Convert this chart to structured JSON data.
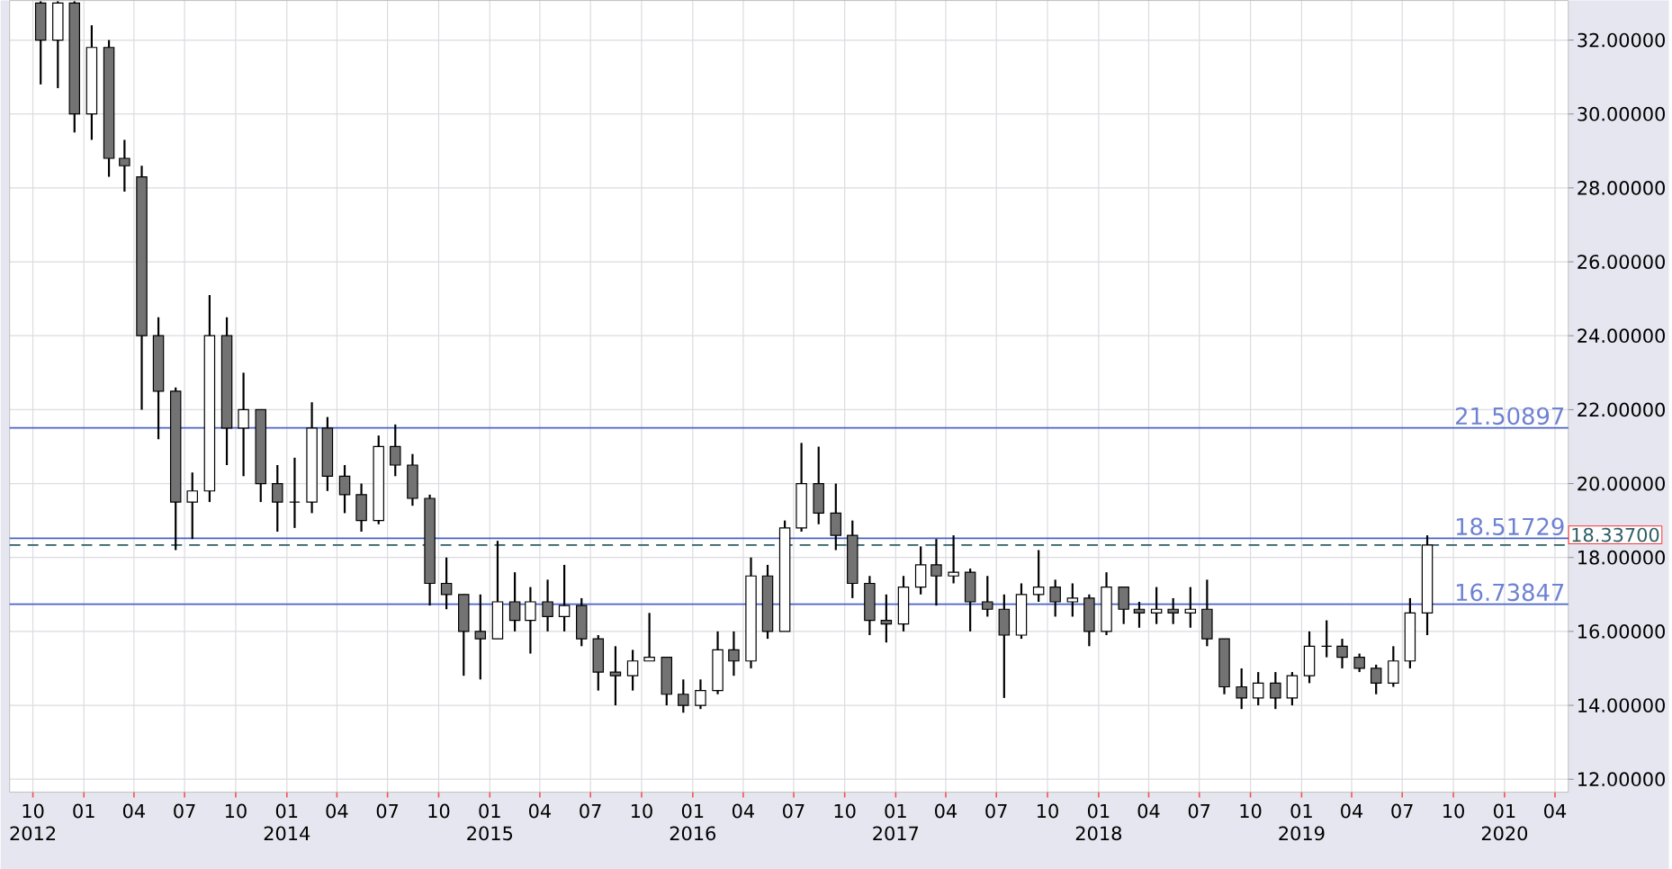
{
  "chart_data": {
    "type": "candlestick",
    "color": "#000000",
    "grid": true,
    "x": [
      "2012-10-15",
      "2012-11-15",
      "2012-12-15",
      "2013-01-15",
      "2013-02-15",
      "2013-03-15",
      "2013-04-15",
      "2013-05-15",
      "2013-06-15",
      "2013-07-15",
      "2013-08-15",
      "2013-09-15",
      "2013-10-15",
      "2013-11-15",
      "2013-12-15",
      "2014-01-15",
      "2014-02-15",
      "2014-03-15",
      "2014-04-15",
      "2014-05-15",
      "2014-06-15",
      "2014-07-15",
      "2014-08-15",
      "2014-09-15",
      "2014-10-15",
      "2014-11-15",
      "2014-12-15",
      "2015-01-15",
      "2015-02-15",
      "2015-03-15",
      "2015-04-15",
      "2015-05-15",
      "2015-06-15",
      "2015-07-15",
      "2015-08-15",
      "2015-09-15",
      "2015-10-15",
      "2015-11-15",
      "2015-12-15",
      "2016-01-15",
      "2016-02-15",
      "2016-03-15",
      "2016-04-15",
      "2016-05-15",
      "2016-06-15",
      "2016-07-15",
      "2016-08-15",
      "2016-09-15",
      "2016-10-15",
      "2016-11-15",
      "2016-12-15",
      "2017-01-15",
      "2017-02-15",
      "2017-03-15",
      "2017-04-15",
      "2017-05-15",
      "2017-06-15",
      "2017-07-15",
      "2017-08-15",
      "2017-09-15",
      "2017-10-15",
      "2017-11-15",
      "2017-12-15",
      "2018-01-15",
      "2018-02-15",
      "2018-03-15",
      "2018-04-15",
      "2018-05-15",
      "2018-06-15",
      "2018-07-15",
      "2018-08-15",
      "2018-09-15",
      "2018-10-15",
      "2018-11-15",
      "2018-12-15",
      "2019-01-15",
      "2019-02-15",
      "2019-03-15",
      "2019-04-15",
      "2019-05-15",
      "2019-06-15",
      "2019-07-15",
      "2019-08-15"
    ],
    "ohlc": [
      [
        33.0,
        33.05,
        30.8,
        32.0
      ],
      [
        32.0,
        33.05,
        30.7,
        33.0
      ],
      [
        33.0,
        33.05,
        29.5,
        30.0
      ],
      [
        30.0,
        32.4,
        29.3,
        31.8
      ],
      [
        31.8,
        32.0,
        28.3,
        28.8
      ],
      [
        28.8,
        29.3,
        27.9,
        28.6
      ],
      [
        28.3,
        28.6,
        22.0,
        24.0
      ],
      [
        24.0,
        24.5,
        21.2,
        22.5
      ],
      [
        22.5,
        22.6,
        18.2,
        19.5
      ],
      [
        19.5,
        20.3,
        18.5,
        19.8
      ],
      [
        19.8,
        25.1,
        19.5,
        24.0
      ],
      [
        24.0,
        24.5,
        20.5,
        21.5
      ],
      [
        21.5,
        23.0,
        20.2,
        22.0
      ],
      [
        22.0,
        22.0,
        19.5,
        20.0
      ],
      [
        20.0,
        20.5,
        18.7,
        19.5
      ],
      [
        19.5,
        20.7,
        18.8,
        19.5
      ],
      [
        19.5,
        22.2,
        19.2,
        21.5
      ],
      [
        21.5,
        21.8,
        19.8,
        20.2
      ],
      [
        20.2,
        20.5,
        19.2,
        19.7
      ],
      [
        19.7,
        20.0,
        18.7,
        19.0
      ],
      [
        19.0,
        21.3,
        18.9,
        21.0
      ],
      [
        21.0,
        21.6,
        20.2,
        20.5
      ],
      [
        20.5,
        20.8,
        19.4,
        19.6
      ],
      [
        19.6,
        19.7,
        16.7,
        17.3
      ],
      [
        17.3,
        18.0,
        16.6,
        17.0
      ],
      [
        17.0,
        17.0,
        14.8,
        16.0
      ],
      [
        16.0,
        17.0,
        14.7,
        15.8
      ],
      [
        15.8,
        18.45,
        15.8,
        16.8
      ],
      [
        16.8,
        17.6,
        16.0,
        16.3
      ],
      [
        16.3,
        17.2,
        15.4,
        16.8
      ],
      [
        16.8,
        17.4,
        16.0,
        16.4
      ],
      [
        16.4,
        17.8,
        16.0,
        16.7
      ],
      [
        16.7,
        16.9,
        15.6,
        15.8
      ],
      [
        15.8,
        15.9,
        14.4,
        14.9
      ],
      [
        14.9,
        15.6,
        14.0,
        14.8
      ],
      [
        14.8,
        15.5,
        14.4,
        15.2
      ],
      [
        15.2,
        16.5,
        15.2,
        15.3
      ],
      [
        15.3,
        15.3,
        14.0,
        14.3
      ],
      [
        14.3,
        14.7,
        13.8,
        14.0
      ],
      [
        14.0,
        14.7,
        13.9,
        14.4
      ],
      [
        14.4,
        16.0,
        14.3,
        15.5
      ],
      [
        15.5,
        16.0,
        14.8,
        15.2
      ],
      [
        15.2,
        18.0,
        15.0,
        17.5
      ],
      [
        17.5,
        17.8,
        15.8,
        16.0
      ],
      [
        16.0,
        19.0,
        16.0,
        18.8
      ],
      [
        18.8,
        21.1,
        18.7,
        20.0
      ],
      [
        20.0,
        21.0,
        18.9,
        19.2
      ],
      [
        19.2,
        20.0,
        18.2,
        18.6
      ],
      [
        18.6,
        19.0,
        16.9,
        17.3
      ],
      [
        17.3,
        17.5,
        15.9,
        16.3
      ],
      [
        16.3,
        17.0,
        15.7,
        16.2
      ],
      [
        16.2,
        17.5,
        16.0,
        17.2
      ],
      [
        17.2,
        18.3,
        17.0,
        17.8
      ],
      [
        17.8,
        18.5,
        16.7,
        17.5
      ],
      [
        17.5,
        18.6,
        17.3,
        17.6
      ],
      [
        17.6,
        17.7,
        16.0,
        16.8
      ],
      [
        16.8,
        17.5,
        16.4,
        16.6
      ],
      [
        16.6,
        17.0,
        14.2,
        15.9
      ],
      [
        15.9,
        17.3,
        15.8,
        17.0
      ],
      [
        17.0,
        18.2,
        16.8,
        17.2
      ],
      [
        17.2,
        17.4,
        16.4,
        16.8
      ],
      [
        16.8,
        17.3,
        16.4,
        16.9
      ],
      [
        16.9,
        17.0,
        15.6,
        16.0
      ],
      [
        16.0,
        17.6,
        15.9,
        17.2
      ],
      [
        17.2,
        17.2,
        16.2,
        16.6
      ],
      [
        16.6,
        16.8,
        16.1,
        16.5
      ],
      [
        16.5,
        17.2,
        16.2,
        16.6
      ],
      [
        16.6,
        16.9,
        16.2,
        16.5
      ],
      [
        16.5,
        17.2,
        16.1,
        16.6
      ],
      [
        16.6,
        17.4,
        15.6,
        15.8
      ],
      [
        15.8,
        15.8,
        14.3,
        14.5
      ],
      [
        14.5,
        15.0,
        13.9,
        14.2
      ],
      [
        14.2,
        14.9,
        14.0,
        14.6
      ],
      [
        14.6,
        14.9,
        13.9,
        14.2
      ],
      [
        14.2,
        14.9,
        14.0,
        14.8
      ],
      [
        14.8,
        16.0,
        14.6,
        15.6
      ],
      [
        15.6,
        16.3,
        15.3,
        15.6
      ],
      [
        15.6,
        15.8,
        15.0,
        15.3
      ],
      [
        15.3,
        15.4,
        14.9,
        15.0
      ],
      [
        15.0,
        15.1,
        14.3,
        14.6
      ],
      [
        14.6,
        15.6,
        14.5,
        15.2
      ],
      [
        15.2,
        16.9,
        15.0,
        16.5
      ],
      [
        16.5,
        18.6,
        15.9,
        18.337
      ]
    ],
    "xlim": [
      "2012-08-20",
      "2020-04-25"
    ],
    "xticks": [
      {
        "value": "2012-10",
        "label": "10 2012"
      },
      {
        "value": "2013-01",
        "label": "01"
      },
      {
        "value": "2013-04",
        "label": "04"
      },
      {
        "value": "2013-07",
        "label": "07"
      },
      {
        "value": "2013-10",
        "label": "10"
      },
      {
        "value": "2014-01",
        "label": "01 2014"
      },
      {
        "value": "2014-04",
        "label": "04"
      },
      {
        "value": "2014-07",
        "label": "07"
      },
      {
        "value": "2014-10",
        "label": "10"
      },
      {
        "value": "2015-01",
        "label": "01 2015"
      },
      {
        "value": "2015-04",
        "label": "04"
      },
      {
        "value": "2015-07",
        "label": "07"
      },
      {
        "value": "2015-10",
        "label": "10"
      },
      {
        "value": "2016-01",
        "label": "01 2016"
      },
      {
        "value": "2016-04",
        "label": "04"
      },
      {
        "value": "2016-07",
        "label": "07"
      },
      {
        "value": "2016-10",
        "label": "10"
      },
      {
        "value": "2017-01",
        "label": "01 2017"
      },
      {
        "value": "2017-04",
        "label": "04"
      },
      {
        "value": "2017-07",
        "label": "07"
      },
      {
        "value": "2017-10",
        "label": "10"
      },
      {
        "value": "2018-01",
        "label": "01 2018"
      },
      {
        "value": "2018-04",
        "label": "04"
      },
      {
        "value": "2018-07",
        "label": "07"
      },
      {
        "value": "2018-10",
        "label": "10"
      },
      {
        "value": "2019-01",
        "label": "01 2019"
      },
      {
        "value": "2019-04",
        "label": "04"
      },
      {
        "value": "2019-07",
        "label": "07"
      },
      {
        "value": "2019-10",
        "label": "10"
      },
      {
        "value": "2020-01",
        "label": "01 2020"
      },
      {
        "value": "2020-04",
        "label": "04"
      }
    ],
    "ylim": [
      11.65,
      33.07
    ],
    "yticks": [
      {
        "value": 12,
        "label": "12.00000"
      },
      {
        "value": 14,
        "label": "14.00000"
      },
      {
        "value": 16,
        "label": "16.00000"
      },
      {
        "value": 18,
        "label": "18.00000"
      },
      {
        "value": 20,
        "label": "20.00000"
      },
      {
        "value": 22,
        "label": "22.00000"
      },
      {
        "value": 24,
        "label": "24.00000"
      },
      {
        "value": 26,
        "label": "26.00000"
      },
      {
        "value": 28,
        "label": "28.00000"
      },
      {
        "value": 30,
        "label": "30.00000"
      },
      {
        "value": 32,
        "label": "32.00000"
      }
    ],
    "ref_lines": [
      {
        "axis": "y",
        "value": 21.50897,
        "label": "21.50897",
        "color": "#4a63c8",
        "line_style": "solid"
      },
      {
        "axis": "y",
        "value": 18.51729,
        "label": "18.51729",
        "color": "#4a63c8",
        "line_style": "solid"
      },
      {
        "axis": "y",
        "value": 16.73847,
        "label": "16.73847",
        "color": "#4a63c8",
        "line_style": "solid"
      },
      {
        "axis": "y",
        "value": 18.337,
        "label": "18.33700",
        "color": "#2f5f66",
        "line_style": "dashed"
      }
    ]
  }
}
